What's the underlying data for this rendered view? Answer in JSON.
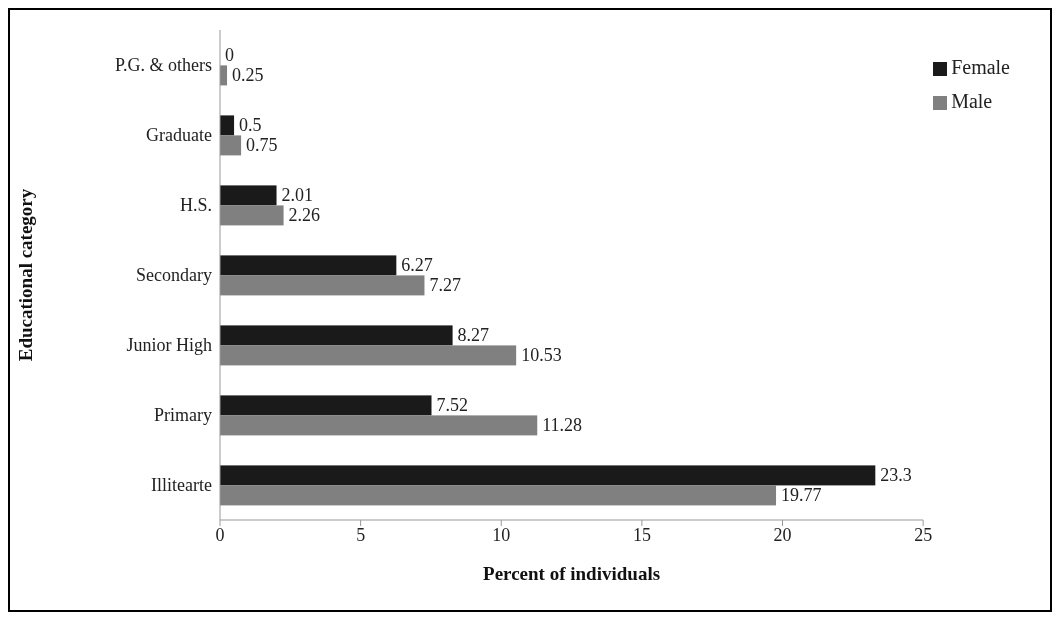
{
  "chart_data": {
    "type": "bar",
    "orientation": "horizontal",
    "xlabel": "Percent of individuals",
    "ylabel": "Educational category",
    "categories": [
      "P.G. & others",
      "Graduate",
      "H.S.",
      "Secondary",
      "Junior High",
      "Primary",
      "Illitearte"
    ],
    "series": [
      {
        "name": "Female",
        "color": "#1a1a1a",
        "values": [
          0,
          0.5,
          2.01,
          6.27,
          8.27,
          7.52,
          23.3
        ]
      },
      {
        "name": "Male",
        "color": "#808080",
        "values": [
          0.25,
          0.75,
          2.26,
          7.27,
          10.53,
          11.28,
          19.77
        ]
      }
    ],
    "xlim": [
      0,
      25
    ],
    "xticks": [
      0,
      5,
      10,
      15,
      20,
      25
    ],
    "data_labels": true,
    "legend": "top right",
    "grid": false
  }
}
